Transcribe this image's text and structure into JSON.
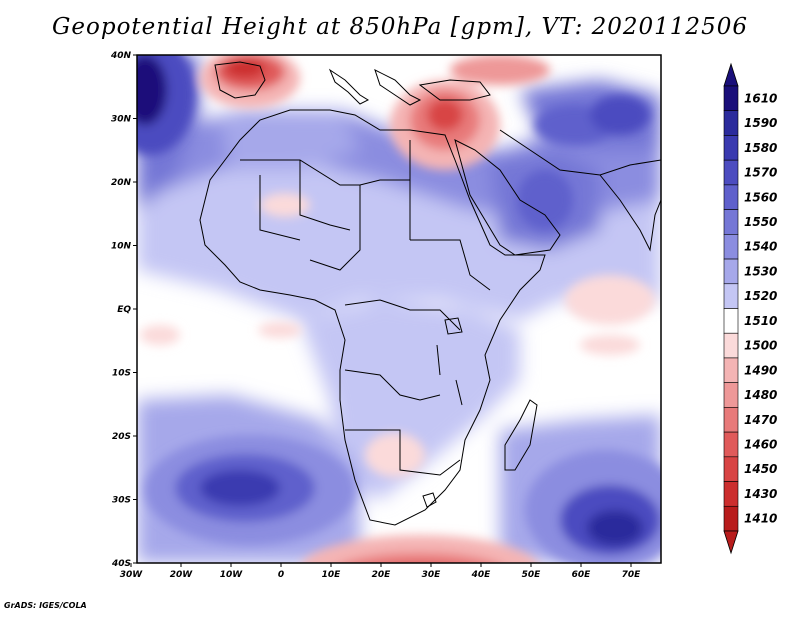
{
  "title": "Geopotential Height at 850hPa [gpm], VT: 2020112506",
  "credit": "GrADS: IGES/COLA",
  "map": {
    "variable": "Geopotential Height",
    "level": "850hPa",
    "units": "gpm",
    "valid_time": "2020112506",
    "lat_labels": [
      "40N",
      "30N",
      "20N",
      "10N",
      "EQ",
      "10S",
      "20S",
      "30S",
      "40S"
    ],
    "lon_labels": [
      "30W",
      "20W",
      "10W",
      "0",
      "10E",
      "20E",
      "30E",
      "40E",
      "50E",
      "60E",
      "70E"
    ]
  },
  "colorbar": {
    "labels": [
      "1610",
      "1590",
      "1580",
      "1570",
      "1560",
      "1550",
      "1540",
      "1530",
      "1520",
      "1510",
      "1500",
      "1490",
      "1480",
      "1470",
      "1460",
      "1450",
      "1430",
      "1410"
    ],
    "colors": [
      "#1a0f7a",
      "#2b2b9c",
      "#3a3ab0",
      "#4c4cc0",
      "#5f60cc",
      "#7577d6",
      "#8b8de0",
      "#a6a8ea",
      "#c4c6f4",
      "#ffffff",
      "#fbdada",
      "#f4b4b4",
      "#ee9898",
      "#e87a7a",
      "#e05a5a",
      "#d84444",
      "#cc2e2e",
      "#b81c1c"
    ],
    "top_arrow_color": "#1a0f7a",
    "bottom_arrow_color": "#b81c1c"
  },
  "colors": {
    "frame": "#000000",
    "coast": "#000000",
    "background": "#ffffff"
  }
}
